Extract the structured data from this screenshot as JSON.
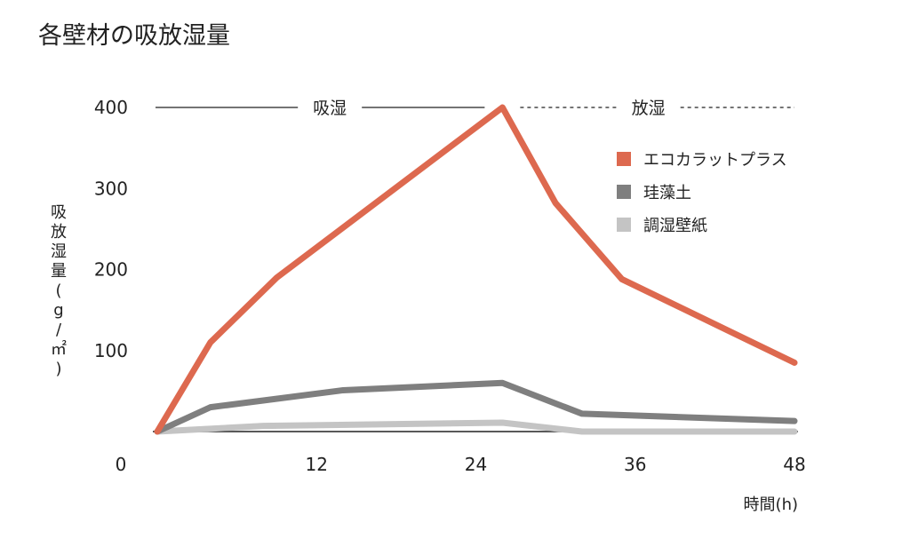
{
  "chart_data": {
    "type": "line",
    "title": "各壁材の吸放湿量",
    "xlabel": "時間(h)",
    "ylabel": "吸放湿量(g/㎡)",
    "xlim": [
      0,
      48
    ],
    "ylim": [
      0,
      400
    ],
    "x_ticks": [
      0,
      12,
      24,
      36,
      48
    ],
    "y_ticks": [
      100,
      200,
      300,
      400
    ],
    "phases": [
      {
        "label": "吸湿",
        "x_start": 0,
        "x_end": 26,
        "style": "solid"
      },
      {
        "label": "放湿",
        "x_start": 26,
        "x_end": 48,
        "style": "dashed"
      }
    ],
    "legend_position": "right",
    "series": [
      {
        "name": "エコカラットプラス",
        "color": "#dd694f",
        "points": [
          [
            0,
            0
          ],
          [
            4,
            110
          ],
          [
            9,
            190
          ],
          [
            26,
            400
          ],
          [
            30,
            282
          ],
          [
            35,
            188
          ],
          [
            48,
            85
          ]
        ]
      },
      {
        "name": "珪藻土",
        "color": "#7f7f7f",
        "points": [
          [
            0,
            0
          ],
          [
            4,
            30
          ],
          [
            14,
            51
          ],
          [
            26,
            60
          ],
          [
            32,
            22
          ],
          [
            48,
            13
          ]
        ]
      },
      {
        "name": "調湿壁紙",
        "color": "#c4c4c4",
        "points": [
          [
            0,
            0
          ],
          [
            8,
            7
          ],
          [
            26,
            11
          ],
          [
            32,
            0
          ],
          [
            48,
            0
          ]
        ]
      }
    ]
  }
}
